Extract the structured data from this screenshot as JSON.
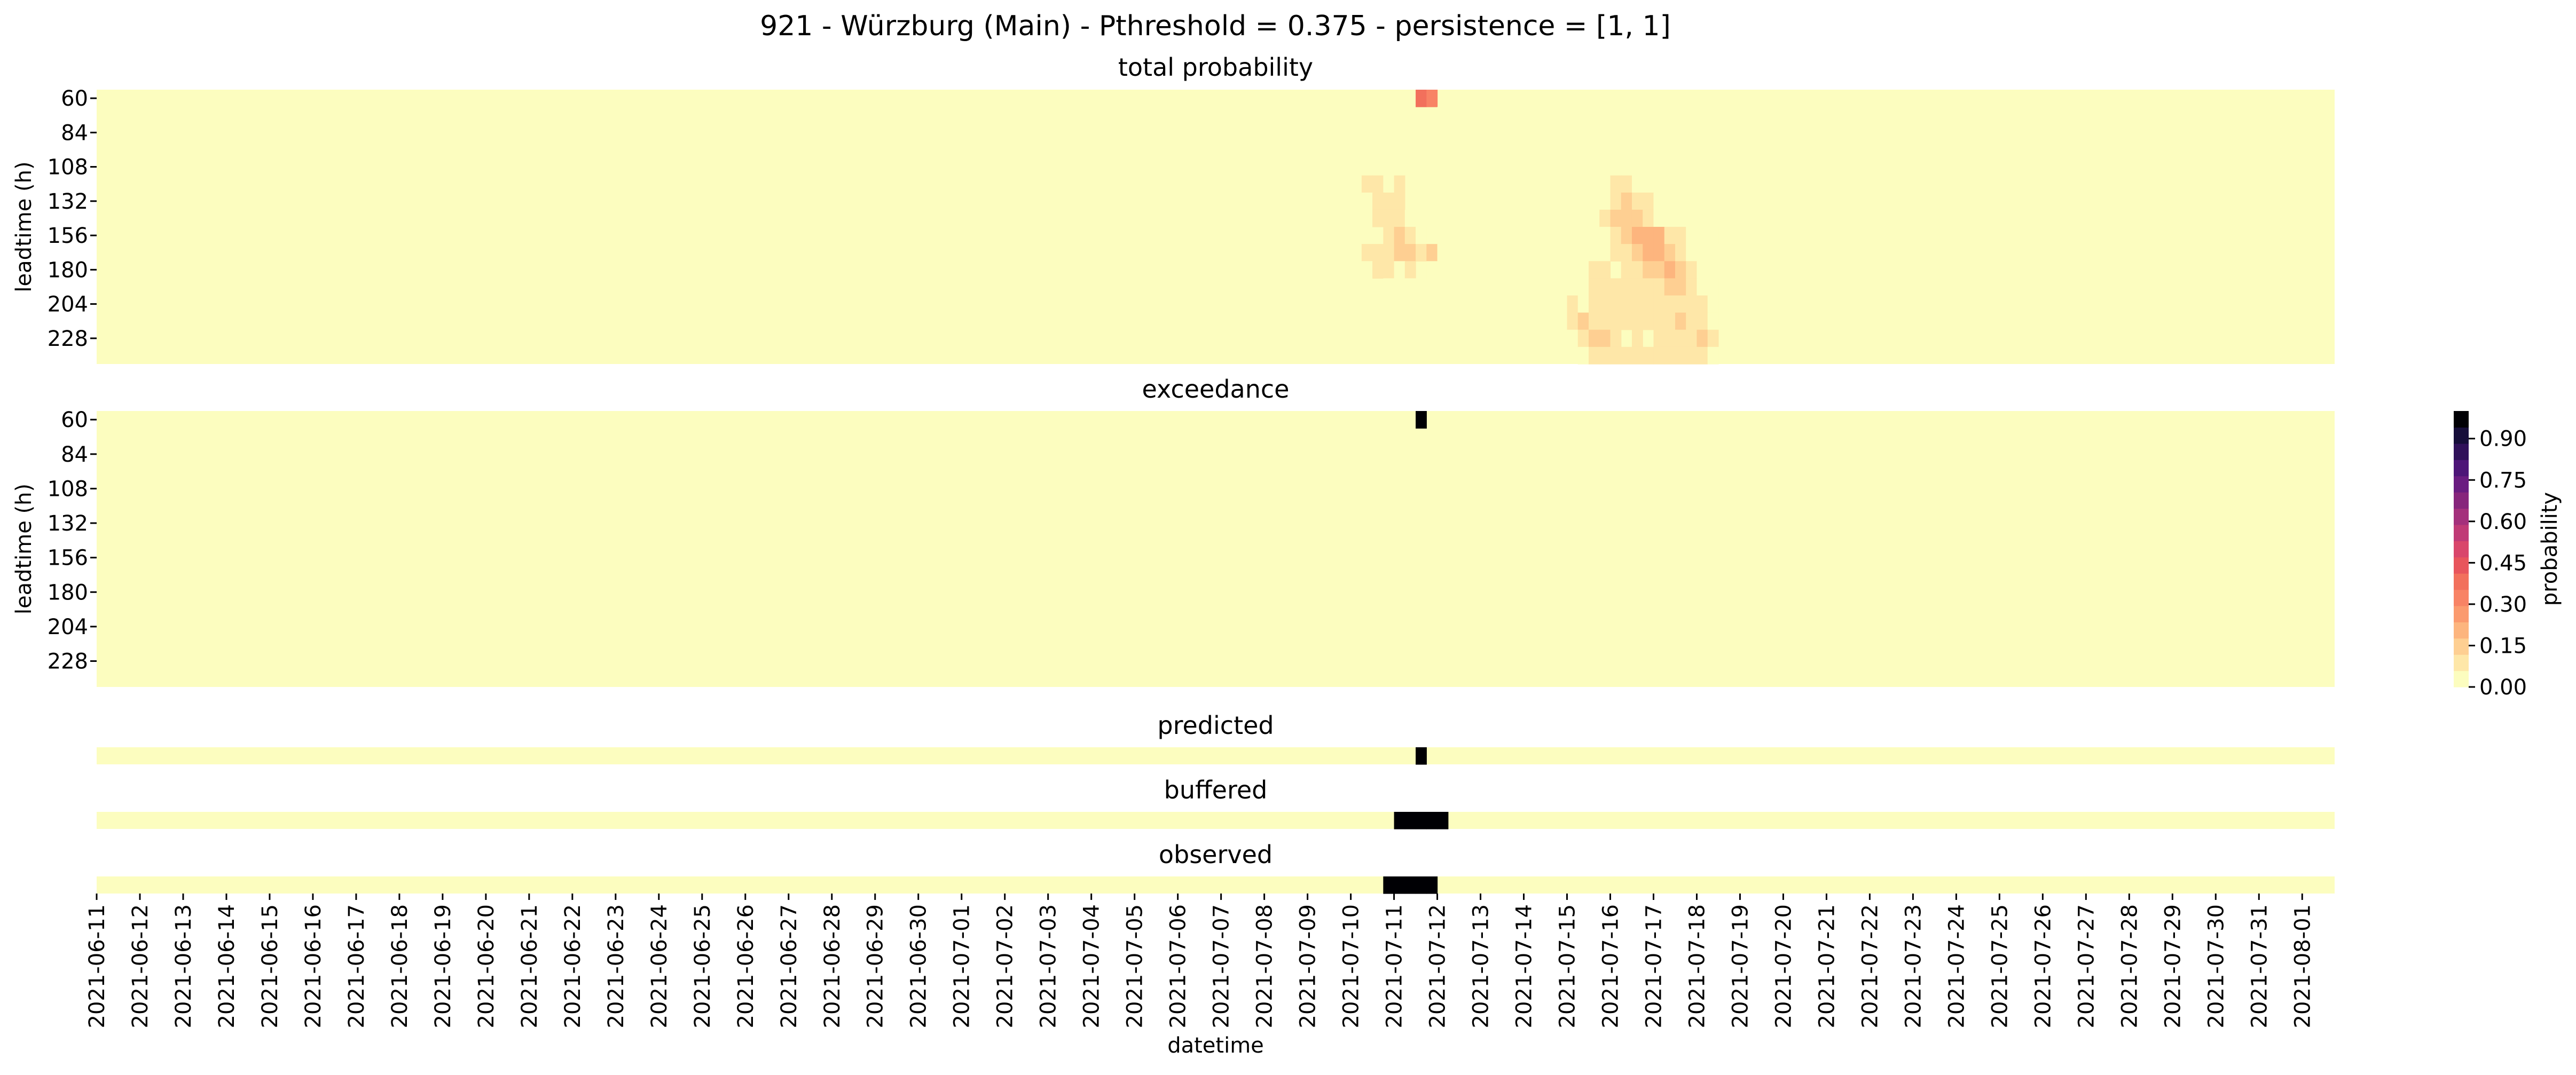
{
  "figure": {
    "suptitle": "921 - Würzburg (Main) - Pthreshold = 0.375 - persistence = [1, 1]"
  },
  "colorbar": {
    "label": "probability",
    "ticks": [
      "0.00",
      "0.15",
      "0.30",
      "0.45",
      "0.60",
      "0.75",
      "0.90"
    ],
    "tick_values": [
      0.0,
      0.15,
      0.3,
      0.45,
      0.6,
      0.75,
      0.9
    ],
    "colors": [
      "#fcfdbf",
      "#fee7a8",
      "#fecf92",
      "#fdb57e",
      "#fb9a6e",
      "#f88365",
      "#f2705c",
      "#e8555c",
      "#d9466b",
      "#c03a76",
      "#a4307c",
      "#87257c",
      "#6a1c81",
      "#4d1578",
      "#30115a",
      "#160e3a",
      "#000004"
    ],
    "range": [
      0,
      1
    ]
  },
  "chart_data": [
    {
      "type": "heatmap",
      "title": "total probability",
      "xlabel": "",
      "ylabel": "leadtime (h)",
      "yticks": [
        "60",
        "84",
        "108",
        "132",
        "156",
        "180",
        "204",
        "228"
      ],
      "n_rows": 16,
      "n_cols": 207,
      "x_start": "2021-06-11",
      "x_end": "2021-08-01",
      "x_step_hours": 6,
      "background": 0.0,
      "cells_note": "",
      "cells": [
        [
          0,
          121,
          0.02
        ],
        [
          0,
          122,
          0.4
        ],
        [
          0,
          123,
          0.3
        ],
        [
          1,
          120,
          0.05
        ],
        [
          1,
          124,
          0.05
        ],
        [
          2,
          115,
          0.05
        ],
        [
          2,
          122,
          0.05
        ],
        [
          2,
          139,
          0.05
        ],
        [
          3,
          116,
          0.05
        ],
        [
          3,
          138,
          0.05
        ],
        [
          3,
          140,
          0.05
        ],
        [
          4,
          116,
          0.05
        ],
        [
          4,
          117,
          0.05
        ],
        [
          4,
          138,
          0.05
        ],
        [
          4,
          139,
          0.05
        ],
        [
          4,
          140,
          0.05
        ],
        [
          5,
          117,
          0.1
        ],
        [
          5,
          118,
          0.08
        ],
        [
          5,
          119,
          0.05
        ],
        [
          5,
          120,
          0.08
        ],
        [
          5,
          138,
          0.05
        ],
        [
          5,
          140,
          0.08
        ],
        [
          5,
          141,
          0.08
        ],
        [
          5,
          142,
          0.05
        ],
        [
          5,
          143,
          0.05
        ],
        [
          5,
          144,
          0.05
        ],
        [
          6,
          117,
          0.05
        ],
        [
          6,
          118,
          0.1
        ],
        [
          6,
          119,
          0.1
        ],
        [
          6,
          120,
          0.08
        ],
        [
          6,
          139,
          0.05
        ],
        [
          6,
          140,
          0.1
        ],
        [
          6,
          141,
          0.12
        ],
        [
          6,
          142,
          0.1
        ],
        [
          6,
          143,
          0.08
        ],
        [
          6,
          144,
          0.05
        ],
        [
          6,
          145,
          0.05
        ],
        [
          7,
          118,
          0.1
        ],
        [
          7,
          119,
          0.1
        ],
        [
          7,
          120,
          0.08
        ],
        [
          7,
          121,
          0.05
        ],
        [
          7,
          138,
          0.05
        ],
        [
          7,
          139,
          0.08
        ],
        [
          7,
          140,
          0.12
        ],
        [
          7,
          141,
          0.15
        ],
        [
          7,
          142,
          0.12
        ],
        [
          7,
          143,
          0.1
        ],
        [
          7,
          144,
          0.05
        ],
        [
          7,
          146,
          0.05
        ],
        [
          7,
          148,
          0.05
        ],
        [
          8,
          119,
          0.1
        ],
        [
          8,
          120,
          0.12
        ],
        [
          8,
          121,
          0.08
        ],
        [
          8,
          122,
          0.05
        ],
        [
          8,
          123,
          0.05
        ],
        [
          8,
          139,
          0.05
        ],
        [
          8,
          140,
          0.08
        ],
        [
          8,
          141,
          0.12
        ],
        [
          8,
          142,
          0.2
        ],
        [
          8,
          143,
          0.22
        ],
        [
          8,
          144,
          0.18
        ],
        [
          8,
          145,
          0.1
        ],
        [
          8,
          146,
          0.08
        ],
        [
          8,
          147,
          0.05
        ],
        [
          8,
          149,
          0.05
        ],
        [
          9,
          116,
          0.05
        ],
        [
          9,
          117,
          0.08
        ],
        [
          9,
          118,
          0.08
        ],
        [
          9,
          119,
          0.1
        ],
        [
          9,
          120,
          0.12
        ],
        [
          9,
          121,
          0.15
        ],
        [
          9,
          122,
          0.1
        ],
        [
          9,
          123,
          0.12
        ],
        [
          9,
          124,
          0.05
        ],
        [
          9,
          139,
          0.05
        ],
        [
          9,
          140,
          0.08
        ],
        [
          9,
          141,
          0.08
        ],
        [
          9,
          142,
          0.15
        ],
        [
          9,
          143,
          0.22
        ],
        [
          9,
          144,
          0.2
        ],
        [
          9,
          145,
          0.15
        ],
        [
          9,
          146,
          0.1
        ],
        [
          9,
          147,
          0.05
        ],
        [
          9,
          148,
          0.05
        ],
        [
          9,
          150,
          0.05
        ],
        [
          10,
          117,
          0.05
        ],
        [
          10,
          118,
          0.08
        ],
        [
          10,
          119,
          0.08
        ],
        [
          10,
          120,
          0.05
        ],
        [
          10,
          121,
          0.08
        ],
        [
          10,
          123,
          0.05
        ],
        [
          10,
          135,
          0.05
        ],
        [
          10,
          137,
          0.05
        ],
        [
          10,
          138,
          0.08
        ],
        [
          10,
          139,
          0.08
        ],
        [
          10,
          141,
          0.08
        ],
        [
          10,
          142,
          0.1
        ],
        [
          10,
          143,
          0.12
        ],
        [
          10,
          144,
          0.15
        ],
        [
          10,
          145,
          0.18
        ],
        [
          10,
          146,
          0.12
        ],
        [
          10,
          147,
          0.08
        ],
        [
          10,
          148,
          0.05
        ],
        [
          10,
          151,
          0.05
        ],
        [
          10,
          152,
          0.05
        ],
        [
          11,
          119,
          0.05
        ],
        [
          11,
          121,
          0.05
        ],
        [
          11,
          134,
          0.05
        ],
        [
          11,
          135,
          0.05
        ],
        [
          11,
          137,
          0.05
        ],
        [
          11,
          138,
          0.08
        ],
        [
          11,
          139,
          0.08
        ],
        [
          11,
          140,
          0.08
        ],
        [
          11,
          141,
          0.08
        ],
        [
          11,
          142,
          0.1
        ],
        [
          11,
          143,
          0.08
        ],
        [
          11,
          144,
          0.1
        ],
        [
          11,
          145,
          0.12
        ],
        [
          11,
          146,
          0.12
        ],
        [
          11,
          147,
          0.1
        ],
        [
          11,
          148,
          0.05
        ],
        [
          11,
          149,
          0.05
        ],
        [
          12,
          135,
          0.05
        ],
        [
          12,
          136,
          0.08
        ],
        [
          12,
          137,
          0.05
        ],
        [
          12,
          138,
          0.08
        ],
        [
          12,
          139,
          0.08
        ],
        [
          12,
          140,
          0.08
        ],
        [
          12,
          141,
          0.08
        ],
        [
          12,
          142,
          0.08
        ],
        [
          12,
          143,
          0.08
        ],
        [
          12,
          144,
          0.08
        ],
        [
          12,
          145,
          0.1
        ],
        [
          12,
          146,
          0.08
        ],
        [
          12,
          147,
          0.08
        ],
        [
          12,
          148,
          0.08
        ],
        [
          12,
          149,
          0.05
        ],
        [
          13,
          136,
          0.08
        ],
        [
          13,
          137,
          0.15
        ],
        [
          13,
          138,
          0.1
        ],
        [
          13,
          139,
          0.08
        ],
        [
          13,
          140,
          0.08
        ],
        [
          13,
          141,
          0.08
        ],
        [
          13,
          142,
          0.08
        ],
        [
          13,
          143,
          0.08
        ],
        [
          13,
          144,
          0.08
        ],
        [
          13,
          145,
          0.1
        ],
        [
          13,
          146,
          0.12
        ],
        [
          13,
          147,
          0.1
        ],
        [
          13,
          148,
          0.08
        ],
        [
          13,
          149,
          0.05
        ],
        [
          14,
          136,
          0.05
        ],
        [
          14,
          137,
          0.08
        ],
        [
          14,
          138,
          0.12
        ],
        [
          14,
          139,
          0.15
        ],
        [
          14,
          140,
          0.08
        ],
        [
          14,
          142,
          0.08
        ],
        [
          14,
          144,
          0.08
        ],
        [
          14,
          145,
          0.08
        ],
        [
          14,
          146,
          0.08
        ],
        [
          14,
          147,
          0.1
        ],
        [
          14,
          148,
          0.12
        ],
        [
          14,
          149,
          0.08
        ],
        [
          15,
          137,
          0.05
        ],
        [
          15,
          138,
          0.08
        ],
        [
          15,
          139,
          0.08
        ],
        [
          15,
          140,
          0.08
        ],
        [
          15,
          141,
          0.08
        ],
        [
          15,
          142,
          0.08
        ],
        [
          15,
          143,
          0.08
        ],
        [
          15,
          144,
          0.08
        ],
        [
          15,
          145,
          0.08
        ],
        [
          15,
          146,
          0.08
        ],
        [
          15,
          147,
          0.1
        ],
        [
          15,
          148,
          0.1
        ],
        [
          15,
          149,
          0.05
        ]
      ]
    },
    {
      "type": "heatmap",
      "title": "exceedance",
      "xlabel": "",
      "ylabel": "leadtime (h)",
      "yticks": [
        "60",
        "84",
        "108",
        "132",
        "156",
        "180",
        "204",
        "228"
      ],
      "n_rows": 16,
      "n_cols": 207,
      "x_start": "2021-06-11",
      "x_end": "2021-08-01",
      "x_step_hours": 6,
      "background": 0.0,
      "cells": [
        [
          0,
          122,
          1.0
        ]
      ]
    },
    {
      "type": "heatmap",
      "title": "predicted",
      "n_rows": 1,
      "n_cols": 207,
      "x_start": "2021-06-11",
      "x_end": "2021-08-01",
      "x_step_hours": 6,
      "background": 0.0,
      "cells": [
        [
          0,
          122,
          1.0
        ]
      ]
    },
    {
      "type": "heatmap",
      "title": "buffered",
      "n_rows": 1,
      "n_cols": 207,
      "x_start": "2021-06-11",
      "x_end": "2021-08-01",
      "x_step_hours": 6,
      "background": 0.0,
      "cells": [
        [
          0,
          120,
          1.0
        ],
        [
          0,
          121,
          1.0
        ],
        [
          0,
          122,
          1.0
        ],
        [
          0,
          123,
          1.0
        ],
        [
          0,
          124,
          1.0
        ]
      ]
    },
    {
      "type": "heatmap",
      "title": "observed",
      "xlabel": "datetime",
      "n_rows": 1,
      "n_cols": 207,
      "x_start": "2021-06-11",
      "x_end": "2021-08-01",
      "x_step_hours": 6,
      "background": 0.0,
      "cells": [
        [
          0,
          119,
          1.0
        ],
        [
          0,
          120,
          1.0
        ],
        [
          0,
          121,
          1.0
        ],
        [
          0,
          122,
          1.0
        ],
        [
          0,
          123,
          1.0
        ]
      ],
      "xticks": [
        "2021-06-11",
        "2021-06-12",
        "2021-06-13",
        "2021-06-14",
        "2021-06-15",
        "2021-06-16",
        "2021-06-17",
        "2021-06-18",
        "2021-06-19",
        "2021-06-20",
        "2021-06-21",
        "2021-06-22",
        "2021-06-23",
        "2021-06-24",
        "2021-06-25",
        "2021-06-26",
        "2021-06-27",
        "2021-06-28",
        "2021-06-29",
        "2021-06-30",
        "2021-07-01",
        "2021-07-02",
        "2021-07-03",
        "2021-07-04",
        "2021-07-05",
        "2021-07-06",
        "2021-07-07",
        "2021-07-08",
        "2021-07-09",
        "2021-07-10",
        "2021-07-11",
        "2021-07-12",
        "2021-07-13",
        "2021-07-14",
        "2021-07-15",
        "2021-07-16",
        "2021-07-17",
        "2021-07-18",
        "2021-07-19",
        "2021-07-20",
        "2021-07-21",
        "2021-07-22",
        "2021-07-23",
        "2021-07-24",
        "2021-07-25",
        "2021-07-26",
        "2021-07-27",
        "2021-07-28",
        "2021-07-29",
        "2021-07-30",
        "2021-07-31",
        "2021-08-01"
      ]
    }
  ]
}
